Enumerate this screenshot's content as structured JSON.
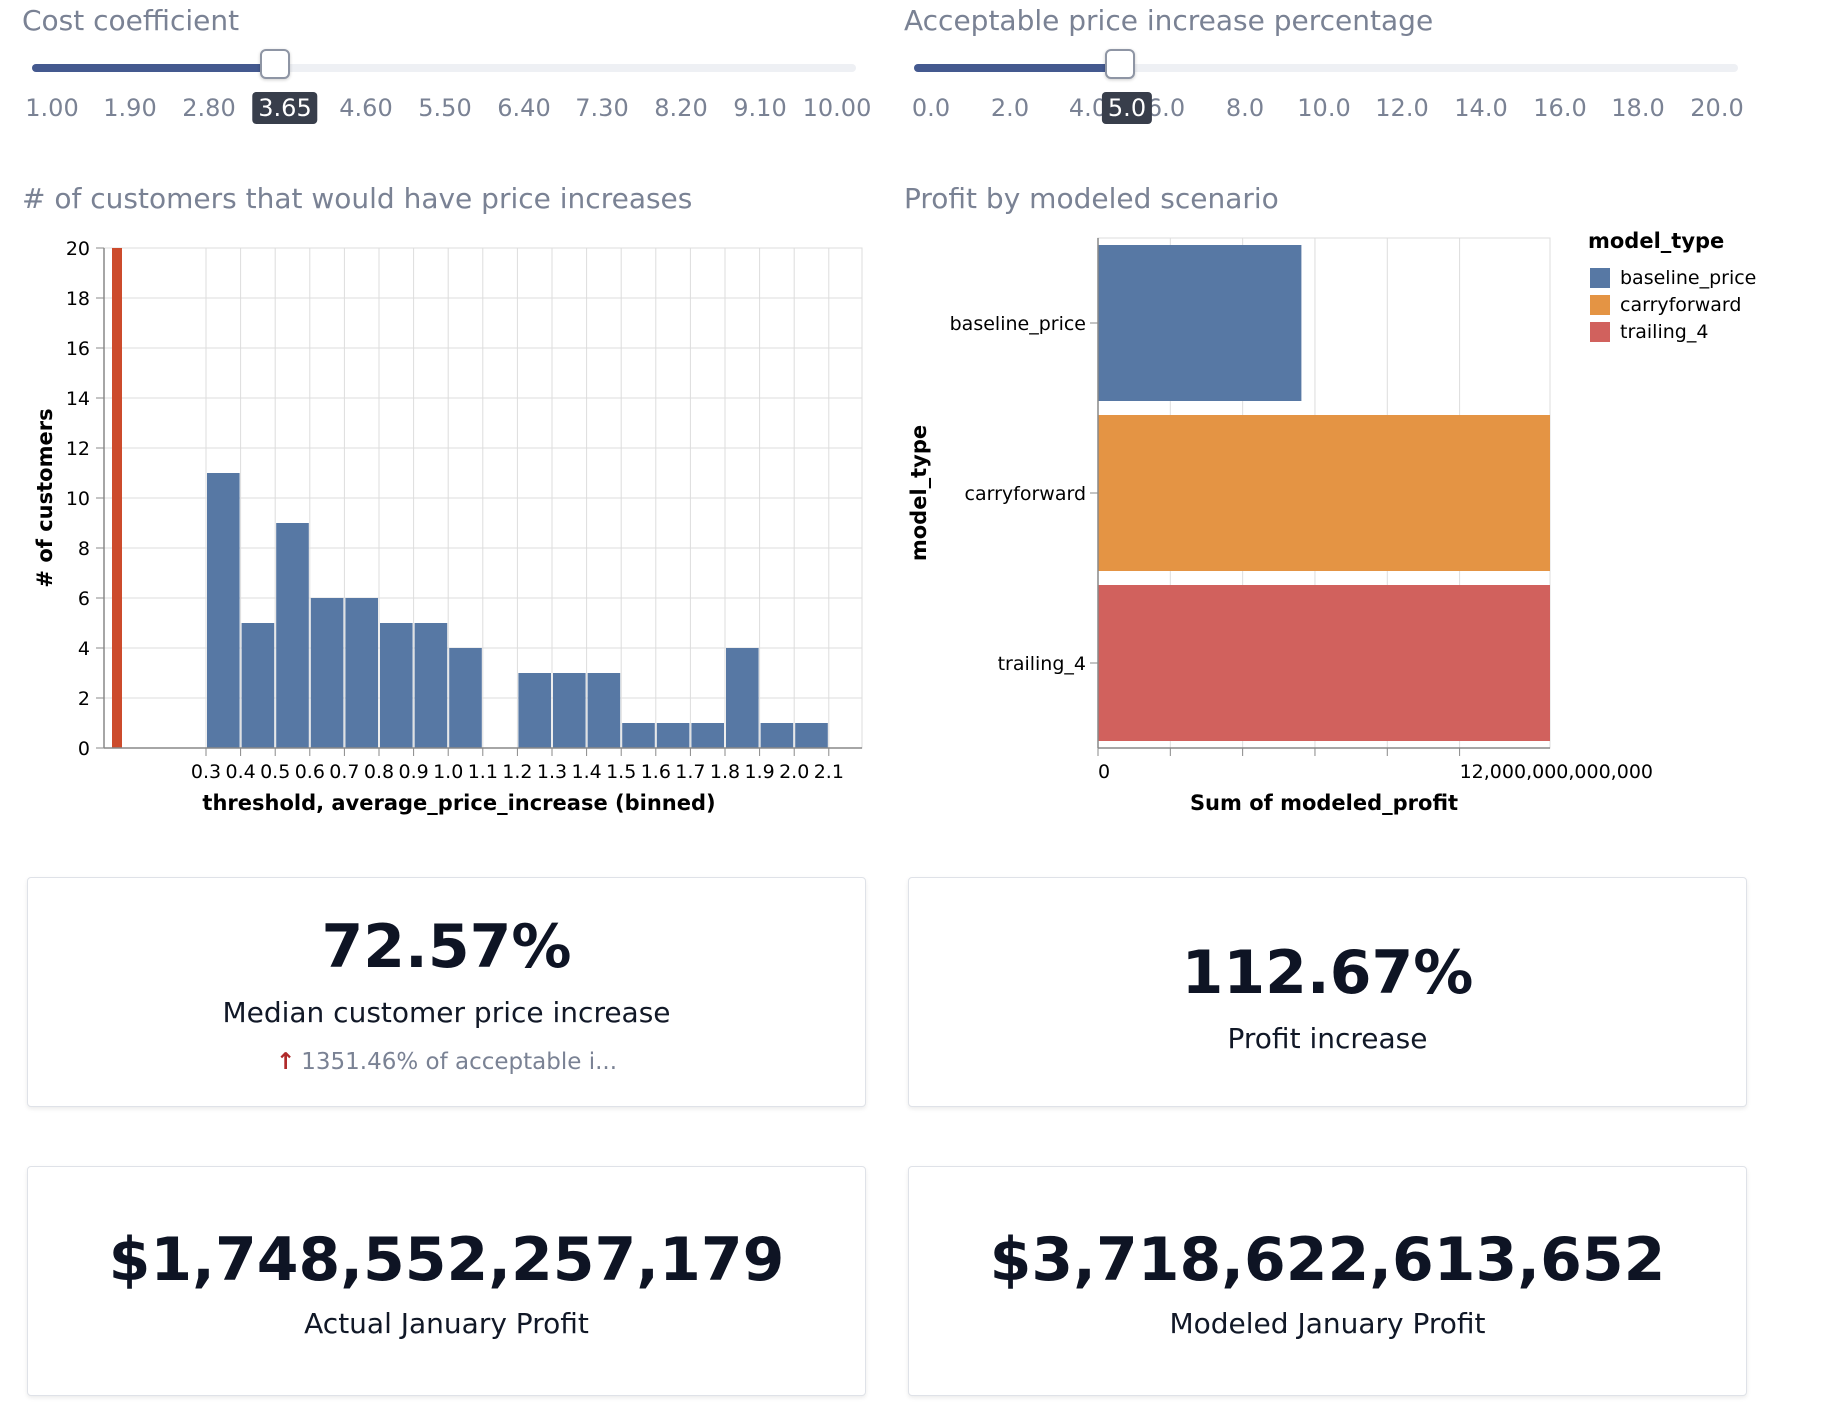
{
  "controls": {
    "cost": {
      "label": "Cost coefficient",
      "value": 3.65,
      "min": 1.0,
      "max": 10.0,
      "value_label": "3.65",
      "ticks": [
        "1.00",
        "1.90",
        "2.80",
        "3.65",
        "4.60",
        "5.50",
        "6.40",
        "7.30",
        "8.20",
        "9.10",
        "10.00"
      ],
      "active_tick": 3
    },
    "acceptable": {
      "label": "Acceptable price increase percentage",
      "value": 5.0,
      "min": 0.0,
      "max": 20.0,
      "value_label": "5.0",
      "ticks": [
        "0.0",
        "2.0",
        "4.0",
        "5.0",
        "6.0",
        "8.0",
        "10.0",
        "12.0",
        "14.0",
        "16.0",
        "18.0",
        "20.0"
      ],
      "active_tick": 3
    }
  },
  "sections": {
    "histogram_title": "# of customers that would have price increases",
    "profit_title": "Profit by modeled scenario"
  },
  "chart_data": [
    {
      "type": "bar",
      "title": "# of customers that would have price increases",
      "xlabel": "threshold, average_price_increase (binned)",
      "ylabel": "# of customers",
      "ylim": [
        0,
        20
      ],
      "yticks": [
        "0",
        "2",
        "4",
        "6",
        "8",
        "10",
        "12",
        "14",
        "16",
        "18",
        "20"
      ],
      "xticks": [
        "0.3",
        "0.4",
        "0.5",
        "0.6",
        "0.7",
        "0.8",
        "0.9",
        "1.0",
        "1.1",
        "1.2",
        "1.3",
        "1.4",
        "1.5",
        "1.6",
        "1.7",
        "1.8",
        "1.9",
        "2.0",
        "2.1"
      ],
      "bins": [
        {
          "start": 0.3,
          "end": 0.4,
          "value": 11
        },
        {
          "start": 0.4,
          "end": 0.5,
          "value": 5
        },
        {
          "start": 0.5,
          "end": 0.6,
          "value": 9
        },
        {
          "start": 0.6,
          "end": 0.7,
          "value": 6
        },
        {
          "start": 0.7,
          "end": 0.8,
          "value": 6
        },
        {
          "start": 0.8,
          "end": 0.9,
          "value": 5
        },
        {
          "start": 0.9,
          "end": 1.0,
          "value": 5
        },
        {
          "start": 1.0,
          "end": 1.1,
          "value": 4
        },
        {
          "start": 1.1,
          "end": 1.2,
          "value": 0
        },
        {
          "start": 1.2,
          "end": 1.3,
          "value": 3
        },
        {
          "start": 1.3,
          "end": 1.4,
          "value": 3
        },
        {
          "start": 1.4,
          "end": 1.5,
          "value": 3
        },
        {
          "start": 1.5,
          "end": 1.6,
          "value": 1
        },
        {
          "start": 1.6,
          "end": 1.7,
          "value": 1
        },
        {
          "start": 1.7,
          "end": 1.8,
          "value": 1
        },
        {
          "start": 1.8,
          "end": 1.9,
          "value": 4
        },
        {
          "start": 1.9,
          "end": 2.0,
          "value": 1
        },
        {
          "start": 2.0,
          "end": 2.1,
          "value": 1
        }
      ],
      "threshold_line": {
        "value": 20
      },
      "colors": {
        "bar": "#5778a4",
        "threshold": "#cc4b2c"
      },
      "grid": true
    },
    {
      "type": "bar",
      "orientation": "horizontal",
      "title": "Profit by modeled scenario",
      "xlabel": "Sum of modeled_profit",
      "ylabel": "model_type",
      "categories": [
        "baseline_price",
        "carryforward",
        "trailing_4"
      ],
      "values": [
        6750000000000,
        15000000000000,
        15000000000000
      ],
      "xlim": [
        0,
        15000000000000
      ],
      "xticks": [
        {
          "value": 0,
          "label": "0"
        },
        {
          "value": 12000000000000,
          "label": "12,000,000,000,000"
        }
      ],
      "minor_ticks": [
        0,
        2400000000000,
        4800000000000,
        7200000000000,
        9600000000000,
        12000000000000
      ],
      "colors": [
        "#5778a4",
        "#e49444",
        "#d1615d"
      ],
      "legend": {
        "title": "model_type",
        "position": "top-right",
        "items": [
          {
            "label": "baseline_price",
            "color": "#5778a4"
          },
          {
            "label": "carryforward",
            "color": "#e49444"
          },
          {
            "label": "trailing_4",
            "color": "#d1615d"
          }
        ]
      },
      "grid": true
    }
  ],
  "kpis": {
    "median": {
      "value": "72.57%",
      "label": "Median customer price increase",
      "delta": "1351.46% of acceptable i...",
      "delta_direction": "up",
      "delta_color": "#b02a2a"
    },
    "profit_increase": {
      "value": "112.67%",
      "label": "Profit increase"
    },
    "actual_profit": {
      "value": "$1,748,552,257,179",
      "label": "Actual January Profit"
    },
    "modeled_profit": {
      "value": "$3,718,622,613,652",
      "label": "Modeled January Profit"
    }
  }
}
